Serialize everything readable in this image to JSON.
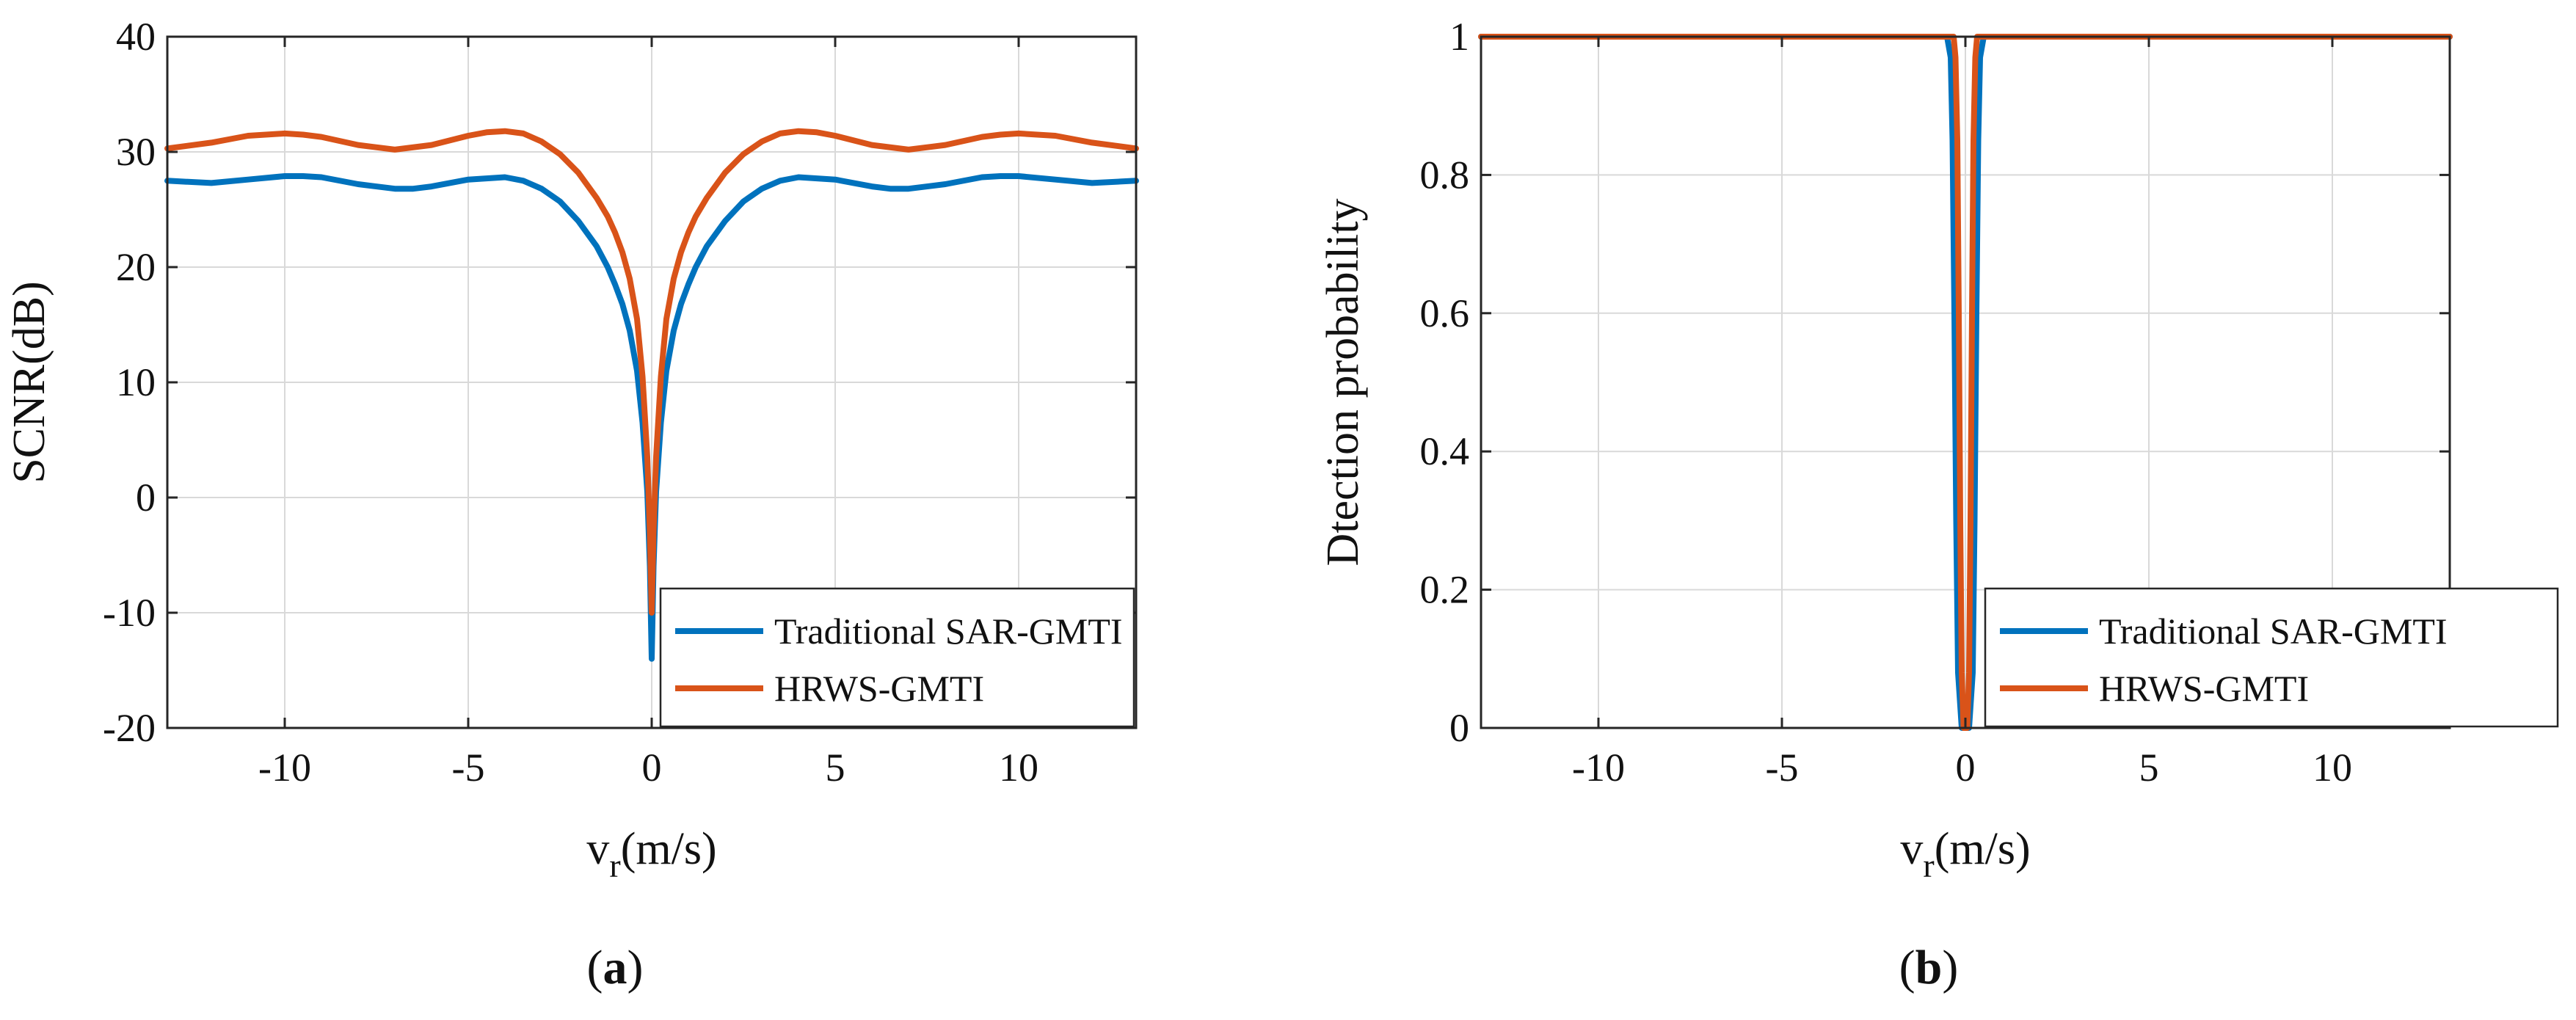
{
  "colors": {
    "traditional": "#0072BD",
    "hrws": "#D95319"
  },
  "chart_data": [
    {
      "type": "line",
      "panel_label": "a",
      "xlabel_main": "v",
      "xlabel_sub": "r",
      "xlabel_unit": "(m/s)",
      "ylabel": "SCNR(dB)",
      "xlim": [
        -13.2,
        13.2
      ],
      "ylim": [
        -20,
        40
      ],
      "xticks": [
        -10,
        -5,
        0,
        5,
        10
      ],
      "xtick_labels": [
        "-10",
        "-5",
        "0",
        "5",
        "10"
      ],
      "yticks": [
        -20,
        -10,
        0,
        10,
        20,
        30,
        40
      ],
      "ytick_labels": [
        "-20",
        "-10",
        "0",
        "10",
        "20",
        "30",
        "40"
      ],
      "grid": true,
      "legend_position": "bottom-right",
      "series": [
        {
          "name": "Traditional SAR-GMTI",
          "x": [
            -13.2,
            -12,
            -11,
            -10,
            -9.5,
            -9,
            -8,
            -7,
            -6.5,
            -6,
            -5,
            -4,
            -3.5,
            -3,
            -2.5,
            -2,
            -1.5,
            -1.2,
            -1,
            -0.8,
            -0.6,
            -0.4,
            -0.25,
            -0.12,
            -0.05,
            0,
            0.05,
            0.12,
            0.25,
            0.4,
            0.6,
            0.8,
            1,
            1.2,
            1.5,
            2,
            2.5,
            3,
            3.5,
            4,
            5,
            6,
            6.5,
            7,
            8,
            9,
            9.5,
            10,
            11,
            12,
            13.2
          ],
          "y": [
            27.5,
            27.3,
            27.6,
            27.9,
            27.9,
            27.8,
            27.2,
            26.8,
            26.8,
            27.0,
            27.6,
            27.8,
            27.5,
            26.8,
            25.7,
            24.0,
            21.8,
            20.0,
            18.5,
            16.8,
            14.5,
            11.0,
            6.5,
            0.5,
            -6.0,
            -14.0,
            -6.0,
            0.5,
            6.5,
            11.0,
            14.5,
            16.8,
            18.5,
            20.0,
            21.8,
            24.0,
            25.7,
            26.8,
            27.5,
            27.8,
            27.6,
            27.0,
            26.8,
            26.8,
            27.2,
            27.8,
            27.9,
            27.9,
            27.6,
            27.3,
            27.5
          ]
        },
        {
          "name": "HRWS-GMTI",
          "x": [
            -13.2,
            -12,
            -11,
            -10,
            -9.5,
            -9,
            -8,
            -7,
            -6,
            -5,
            -4.5,
            -4,
            -3.5,
            -3,
            -2.5,
            -2,
            -1.5,
            -1.2,
            -1,
            -0.8,
            -0.6,
            -0.4,
            -0.25,
            -0.12,
            -0.05,
            0,
            0.05,
            0.12,
            0.25,
            0.4,
            0.6,
            0.8,
            1,
            1.2,
            1.5,
            2,
            2.5,
            3,
            3.5,
            4,
            4.5,
            5,
            6,
            7,
            8,
            9,
            9.5,
            10,
            11,
            12,
            13.2
          ],
          "y": [
            30.3,
            30.8,
            31.4,
            31.6,
            31.5,
            31.3,
            30.6,
            30.2,
            30.6,
            31.4,
            31.7,
            31.8,
            31.6,
            30.9,
            29.8,
            28.2,
            26.0,
            24.4,
            23.0,
            21.3,
            19.0,
            15.5,
            10.5,
            3.5,
            -3.0,
            -10.0,
            -3.0,
            3.5,
            10.5,
            15.5,
            19.0,
            21.3,
            23.0,
            24.4,
            26.0,
            28.2,
            29.8,
            30.9,
            31.6,
            31.8,
            31.7,
            31.4,
            30.6,
            30.2,
            30.6,
            31.3,
            31.5,
            31.6,
            31.4,
            30.8,
            30.3
          ]
        }
      ]
    },
    {
      "type": "line",
      "panel_label": "b",
      "xlabel_main": "v",
      "xlabel_sub": "r",
      "xlabel_unit": "(m/s)",
      "ylabel": "Dtection probability",
      "xlim": [
        -13.2,
        13.2
      ],
      "ylim": [
        0,
        1
      ],
      "xticks": [
        -10,
        -5,
        0,
        5,
        10
      ],
      "xtick_labels": [
        "-10",
        "-5",
        "0",
        "5",
        "10"
      ],
      "yticks": [
        0,
        0.2,
        0.4,
        0.6,
        0.8,
        1
      ],
      "ytick_labels": [
        "0",
        "0.2",
        "0.4",
        "0.6",
        "0.8",
        "1"
      ],
      "grid": true,
      "legend_position": "bottom-right",
      "series": [
        {
          "name": "Traditional SAR-GMTI",
          "x": [
            -13.2,
            -0.5,
            -0.4,
            -0.35,
            -0.3,
            -0.25,
            -0.2,
            -0.1,
            0,
            0.1,
            0.2,
            0.25,
            0.3,
            0.35,
            0.4,
            0.5,
            13.2
          ],
          "y": [
            1,
            1,
            0.97,
            0.85,
            0.6,
            0.3,
            0.08,
            0,
            0,
            0,
            0.08,
            0.3,
            0.6,
            0.85,
            0.97,
            1,
            1
          ]
        },
        {
          "name": "HRWS-GMTI",
          "x": [
            -13.2,
            -0.32,
            -0.27,
            -0.22,
            -0.18,
            -0.14,
            -0.1,
            -0.05,
            0,
            0.05,
            0.1,
            0.14,
            0.18,
            0.22,
            0.27,
            0.32,
            13.2
          ],
          "y": [
            1,
            1,
            0.97,
            0.85,
            0.6,
            0.3,
            0.08,
            0,
            0,
            0,
            0.08,
            0.3,
            0.6,
            0.85,
            0.97,
            1,
            1
          ]
        }
      ]
    }
  ]
}
